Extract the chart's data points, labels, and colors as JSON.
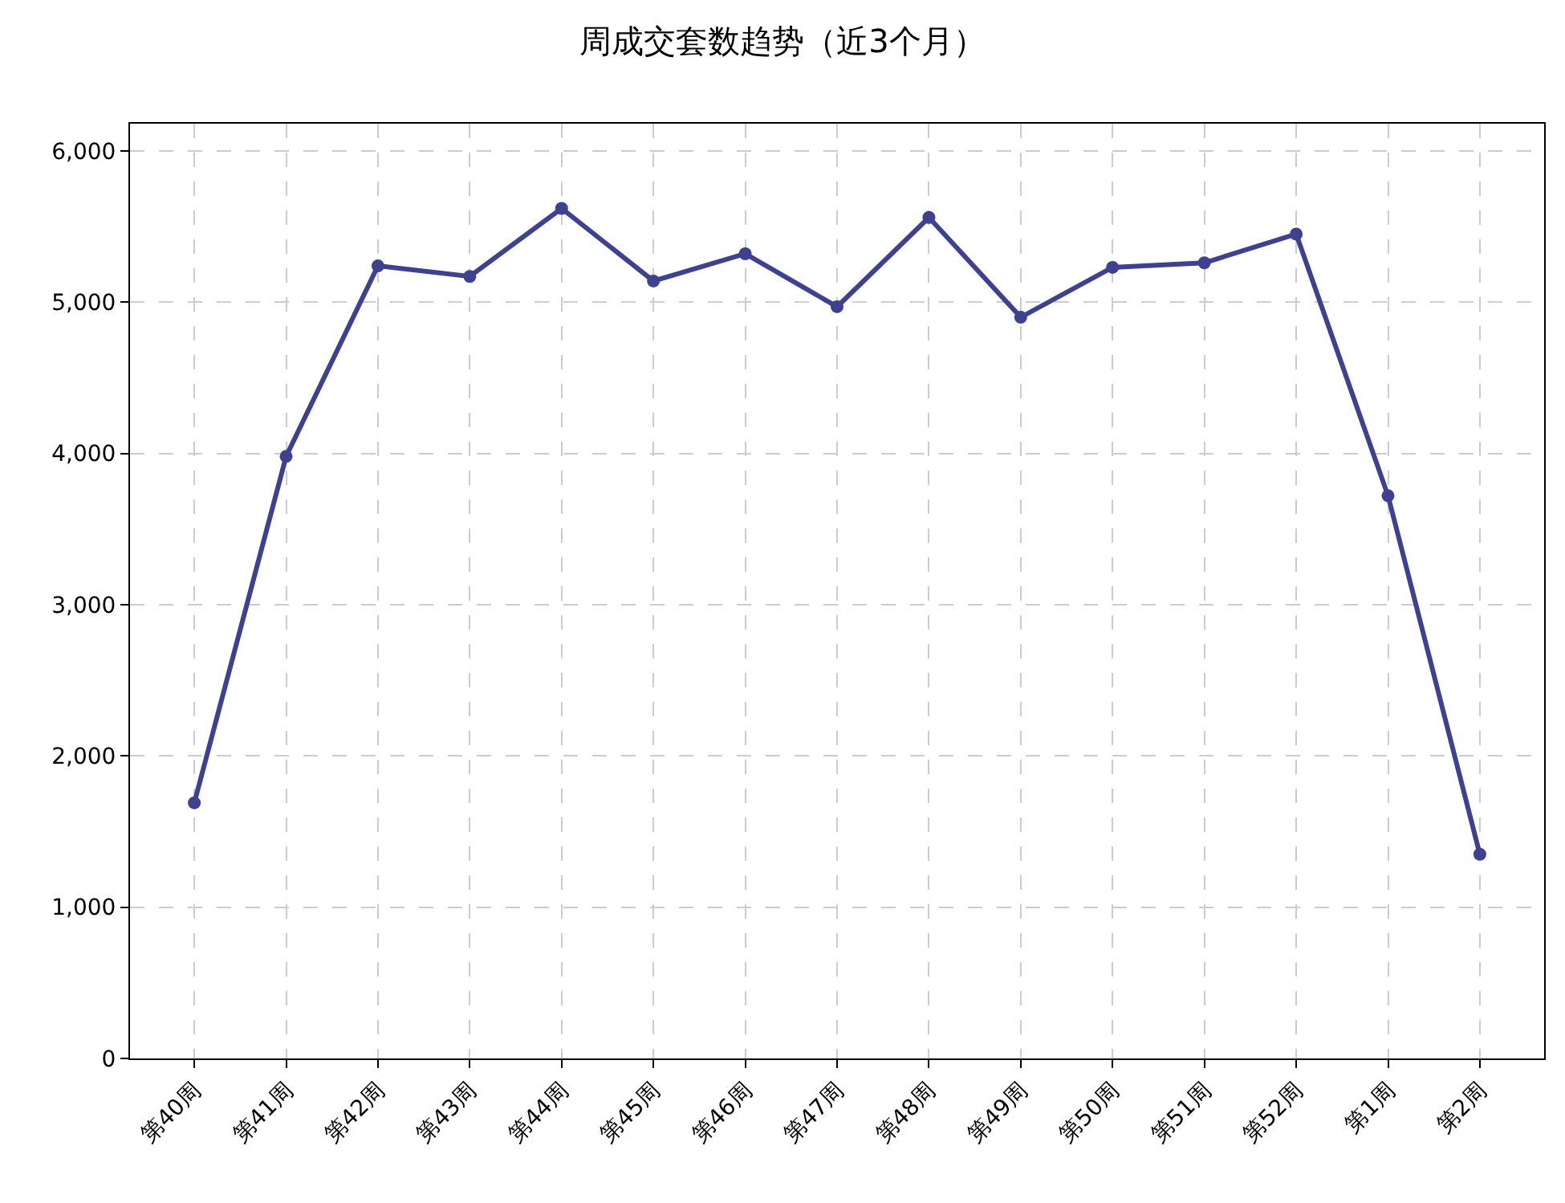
{
  "chart_data": {
    "type": "line",
    "title": "周成交套数趋势（近3个月）",
    "categories": [
      "第40周",
      "第41周",
      "第42周",
      "第43周",
      "第44周",
      "第45周",
      "第46周",
      "第47周",
      "第48周",
      "第49周",
      "第50周",
      "第51周",
      "第52周",
      "第1周",
      "第2周"
    ],
    "series": [
      {
        "color": "#3d4190",
        "values": [
          1690,
          3980,
          5240,
          5170,
          5620,
          5140,
          5320,
          4970,
          5560,
          4900,
          5230,
          5260,
          5450,
          3720,
          1350
        ]
      }
    ],
    "ylim": [
      0,
      6180
    ],
    "yticks": [
      0,
      {
        "value": 1000,
        "label": "1,000"
      },
      {
        "value": 2000,
        "label": "2,000"
      },
      {
        "value": 3000,
        "label": "3,000"
      },
      {
        "value": 4000,
        "label": "4,000"
      },
      {
        "value": 5000,
        "label": "5,000"
      },
      {
        "value": 6000,
        "label": "6,000"
      }
    ],
    "grid": true,
    "marker": "circle",
    "line_style": "solid"
  }
}
